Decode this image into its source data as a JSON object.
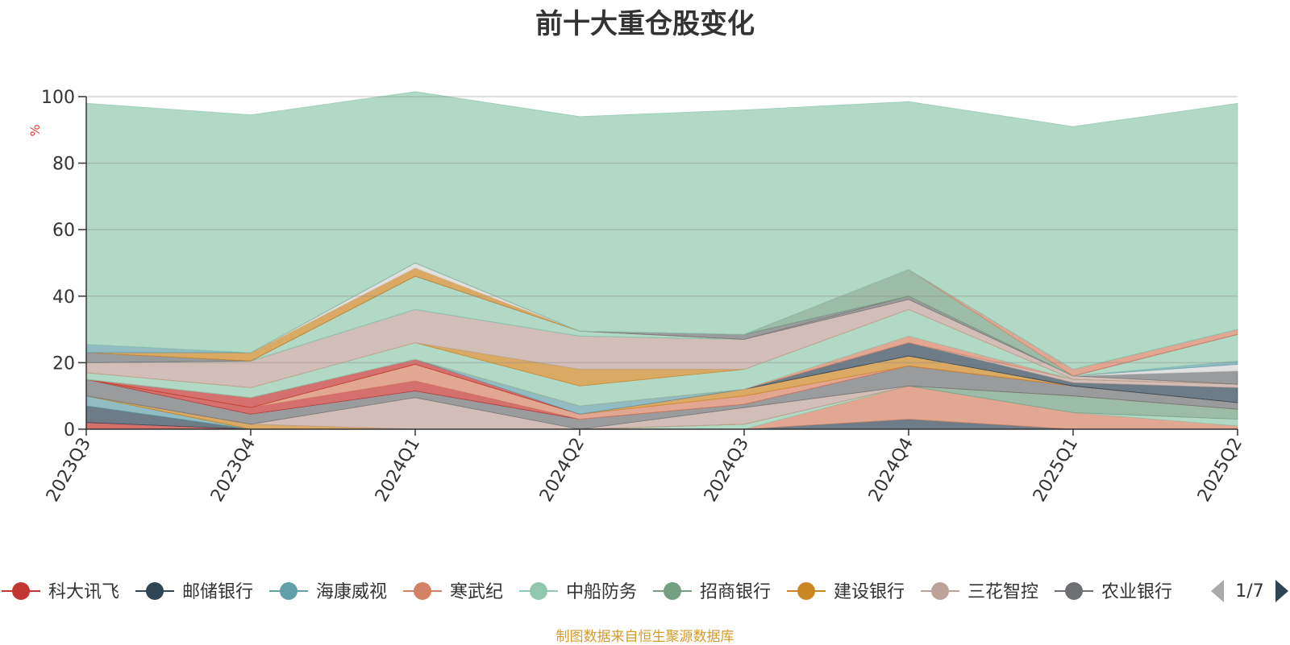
{
  "chart_data": {
    "type": "area",
    "title": "前十大重仓股变化",
    "ylabel": "%",
    "ylim": [
      0,
      100
    ],
    "yticks": [
      0,
      20,
      40,
      60,
      80,
      100
    ],
    "categories": [
      "2023Q3",
      "2023Q4",
      "2024Q1",
      "2024Q2",
      "2024Q3",
      "2024Q4",
      "2025Q1",
      "2025Q2"
    ],
    "grid": true,
    "legend_position": "bottom",
    "series": [
      {
        "name": "科大讯飞",
        "color": "#c23531",
        "values": [
          2,
          0,
          0,
          0,
          0,
          0,
          0,
          0
        ]
      },
      {
        "name": "邮储银行",
        "color": "#2f4554",
        "values": [
          5,
          0,
          0,
          0,
          0,
          3,
          0,
          0
        ]
      },
      {
        "name": "海康威视",
        "color": "#61a0a8",
        "values": [
          3,
          0,
          0,
          0,
          0,
          0,
          0,
          0
        ]
      },
      {
        "name": "寒武纪",
        "color": "#d48265",
        "values": [
          0,
          0,
          0,
          0,
          0,
          10,
          5,
          1
        ]
      },
      {
        "name": "中船防务",
        "color": "#91c7ae",
        "values": [
          0,
          0,
          0,
          0,
          1.5,
          0,
          0,
          2
        ]
      },
      {
        "name": "招商银行",
        "color": "#749f83",
        "values": [
          0,
          0,
          0,
          0,
          0,
          0,
          5,
          3
        ]
      },
      {
        "name": "建设银行",
        "color": "#ca8622",
        "values": [
          0,
          1.5,
          0,
          0,
          0,
          0,
          0,
          0
        ]
      },
      {
        "name": "三花智控",
        "color": "#bda29a",
        "values": [
          0,
          0,
          9.5,
          0,
          5,
          0,
          0,
          0
        ]
      },
      {
        "name": "农业银行",
        "color": "#6e7074",
        "values": [
          5,
          3,
          2,
          3,
          1,
          6,
          3,
          2
        ]
      },
      {
        "name": "",
        "color": "#c23531",
        "values": [
          0,
          2,
          3,
          0,
          0,
          0,
          0,
          0
        ]
      },
      {
        "name": "",
        "color": "#d48265",
        "values": [
          0,
          0,
          5,
          1.5,
          2.5,
          0,
          0,
          0
        ]
      },
      {
        "name": "",
        "color": "#ca8622",
        "values": [
          0,
          0,
          0,
          0,
          2,
          3,
          0,
          0
        ]
      },
      {
        "name": "",
        "color": "#c23531",
        "values": [
          0,
          3,
          1.5,
          0,
          0,
          0,
          0,
          0
        ]
      },
      {
        "name": "",
        "color": "#61a0a8",
        "values": [
          0,
          0,
          0,
          2.5,
          0,
          0,
          0,
          0
        ]
      },
      {
        "name": "",
        "color": "#2f4554",
        "values": [
          0,
          0,
          0,
          0,
          0,
          4,
          1,
          4.5
        ]
      },
      {
        "name": "",
        "color": "#bda29a",
        "values": [
          0,
          0,
          0,
          0,
          0,
          0,
          1,
          1
        ]
      },
      {
        "name": "",
        "color": "#d48265",
        "values": [
          0,
          0,
          0,
          0,
          0,
          2,
          0,
          0
        ]
      },
      {
        "name": "",
        "color": "#91c7ae",
        "values": [
          2,
          3,
          5,
          6,
          6,
          8,
          0,
          0
        ]
      },
      {
        "name": "",
        "color": "#ca8622",
        "values": [
          0,
          0,
          0,
          5,
          0,
          0,
          0,
          0
        ]
      },
      {
        "name": "",
        "color": "#bda29a",
        "values": [
          3,
          8,
          10,
          10,
          9,
          3,
          1,
          0
        ]
      },
      {
        "name": "",
        "color": "#6e7074",
        "values": [
          0,
          0,
          0,
          0,
          0,
          1,
          0,
          4
        ]
      },
      {
        "name": "",
        "color": "#d4d4d4",
        "values": [
          0,
          0,
          0,
          0,
          0,
          0,
          0,
          2
        ]
      },
      {
        "name": "",
        "color": "#61a0a8",
        "values": [
          0,
          0,
          0,
          0,
          0,
          0,
          0,
          1
        ]
      },
      {
        "name": "",
        "color": "#91c7ae",
        "values": [
          0,
          0,
          10,
          1.5,
          0,
          0,
          0,
          8
        ]
      },
      {
        "name": "",
        "color": "#6e7074",
        "values": [
          3,
          0,
          0,
          0,
          0,
          0,
          0,
          0
        ]
      },
      {
        "name": "",
        "color": "#ca8622",
        "values": [
          0,
          2.5,
          2.5,
          0,
          0,
          0,
          0,
          0
        ]
      },
      {
        "name": "",
        "color": "#d4d4d4",
        "values": [
          0,
          0,
          1.5,
          0,
          0,
          0,
          0,
          0
        ]
      },
      {
        "name": "",
        "color": "#6e7074",
        "values": [
          0,
          0,
          0,
          0,
          1.5,
          0,
          0,
          0
        ]
      },
      {
        "name": "",
        "color": "#749f83",
        "values": [
          0,
          0,
          0,
          0,
          0,
          8,
          0,
          0
        ]
      },
      {
        "name": "",
        "color": "#d48265",
        "values": [
          0,
          0,
          0,
          0,
          0,
          0,
          2,
          1.5
        ]
      },
      {
        "name": "",
        "color": "#61a0a8",
        "values": [
          2.5,
          0,
          0,
          0,
          0,
          0,
          0,
          0
        ]
      },
      {
        "name": "",
        "color": "#91c7ae",
        "values": [
          72.5,
          71.5,
          51.5,
          64.5,
          67.5,
          50.5,
          73,
          68
        ]
      }
    ]
  },
  "legend": {
    "items": [
      {
        "label": "科大讯飞",
        "color": "#c23531"
      },
      {
        "label": "邮储银行",
        "color": "#2f4554"
      },
      {
        "label": "海康威视",
        "color": "#61a0a8"
      },
      {
        "label": "寒武纪",
        "color": "#d48265"
      },
      {
        "label": "中船防务",
        "color": "#91c7ae"
      },
      {
        "label": "招商银行",
        "color": "#749f83"
      },
      {
        "label": "建设银行",
        "color": "#ca8622"
      },
      {
        "label": "三花智控",
        "color": "#bda29a"
      },
      {
        "label": "农业银行",
        "color": "#6e7074"
      }
    ],
    "page_indicator": "1/7"
  },
  "footer": {
    "source": "制图数据来自恒生聚源数据库"
  }
}
